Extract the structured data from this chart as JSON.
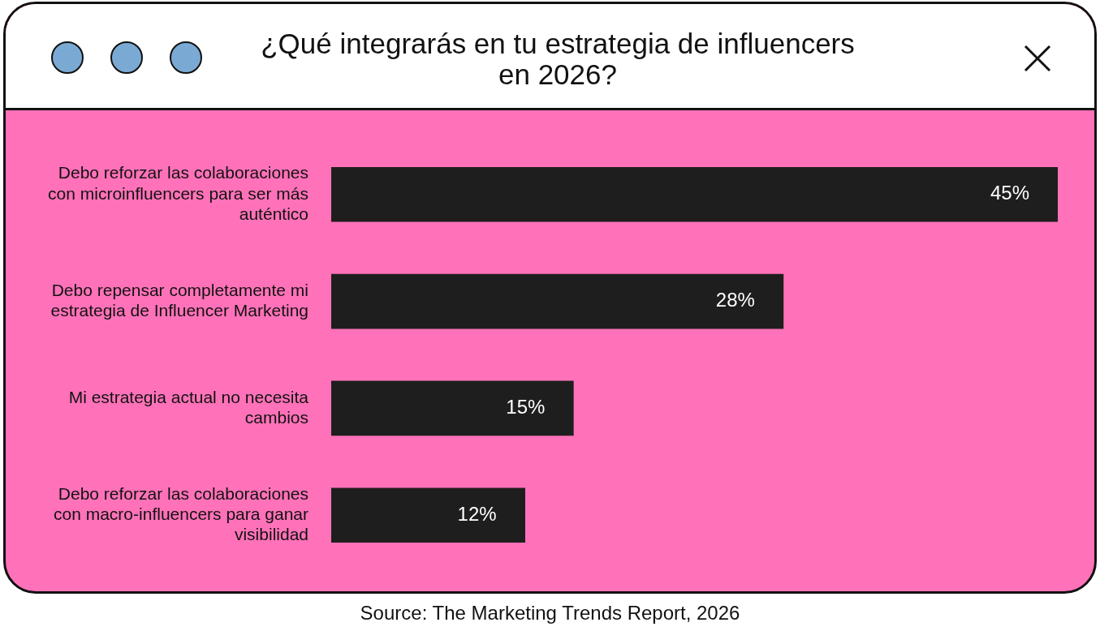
{
  "chart_data": {
    "type": "bar",
    "orientation": "horizontal",
    "title": "¿Qué integrarás en tu estrategia de influencers en 2026?",
    "categories": [
      "Debo reforzar las colaboraciones con microinfluencers para ser más auténtico",
      "Debo repensar completamente mi estrategia de Influencer Marketing",
      "Mi estrategia actual no necesita cambios",
      "Debo reforzar las colaboraciones con macro-influencers para ganar visibilidad"
    ],
    "values": [
      45,
      28,
      15,
      12
    ],
    "value_labels": [
      "45%",
      "28%",
      "15%",
      "12%"
    ],
    "color": "#1e1e1e",
    "legend": false,
    "annotations": [
      "Source: The Marketing Trends Report, 2026"
    ]
  }
}
